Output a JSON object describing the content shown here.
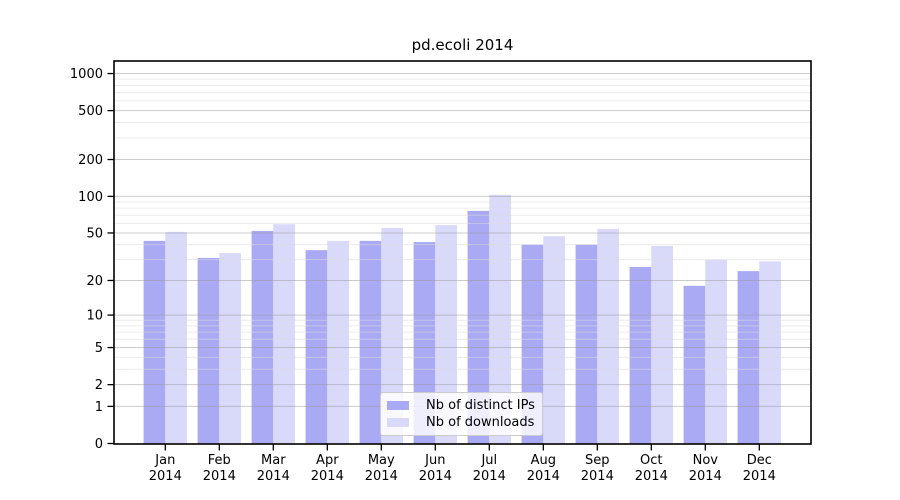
{
  "title": "pd.ecoli 2014",
  "chart_data": {
    "type": "bar",
    "title": "pd.ecoli 2014",
    "y_scale": "log1p",
    "grid": "major and minor horizontal gridlines, drawn above bars",
    "legend_position": "lower center, inside plot",
    "months": [
      "Jan",
      "Feb",
      "Mar",
      "Apr",
      "May",
      "Jun",
      "Jul",
      "Aug",
      "Sep",
      "Oct",
      "Nov",
      "Dec"
    ],
    "year": "2014",
    "categories": [
      "Jan 2014",
      "Feb 2014",
      "Mar 2014",
      "Apr 2014",
      "May 2014",
      "Jun 2014",
      "Jul 2014",
      "Aug 2014",
      "Sep 2014",
      "Oct 2014",
      "Nov 2014",
      "Dec 2014"
    ],
    "series": [
      {
        "name": "Nb of distinct IPs",
        "color": "#a9a9f4",
        "values": [
          43,
          31,
          52,
          36,
          43,
          42,
          76,
          40,
          40,
          26,
          18,
          24
        ]
      },
      {
        "name": "Nb of downloads",
        "color": "#d9d9fa",
        "values": [
          51,
          34,
          59,
          43,
          55,
          58,
          103,
          47,
          54,
          39,
          30,
          29
        ]
      }
    ],
    "y_ticks": [
      0,
      1,
      2,
      5,
      10,
      20,
      50,
      100,
      200,
      500,
      1000
    ],
    "y_minor_ticks": [
      3,
      4,
      6,
      7,
      8,
      9,
      30,
      40,
      60,
      70,
      80,
      90,
      300,
      400,
      600,
      700,
      800,
      900
    ],
    "ylim": [
      0,
      1265
    ]
  },
  "colors": {
    "background": "#ffffff",
    "axis": "#000000",
    "major_grid": "#cbcbcb",
    "minor_grid": "#f0f0f0",
    "bars_distinct_ips": "#a9a9f4",
    "bars_downloads": "#d9d9fa"
  }
}
